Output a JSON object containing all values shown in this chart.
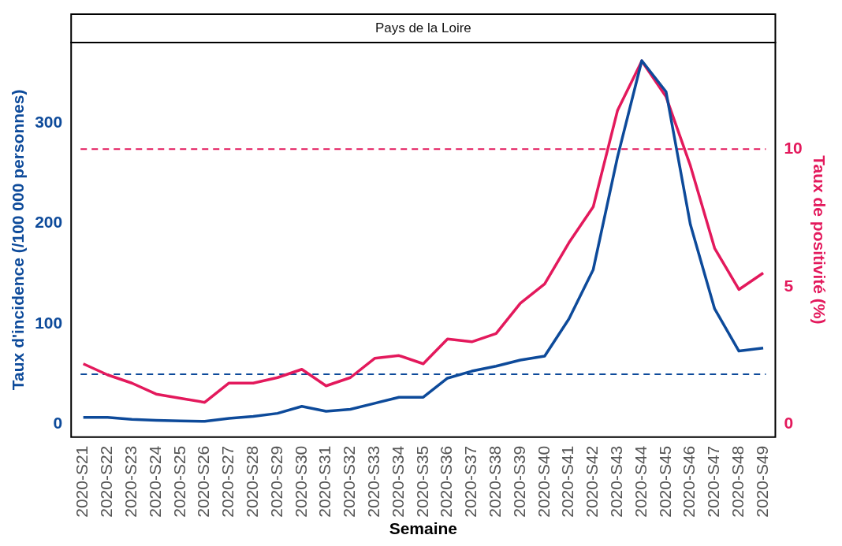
{
  "chart_data": {
    "type": "line",
    "title": "Pays de la Loire",
    "xlabel": "Semaine",
    "ylabel": "Taux d'incidence (/100 000 personnes)",
    "y2label": "Taux de positivité (%)",
    "categories": [
      "2020-S21",
      "2020-S22",
      "2020-S23",
      "2020-S24",
      "2020-S25",
      "2020-S26",
      "2020-S27",
      "2020-S28",
      "2020-S29",
      "2020-S30",
      "2020-S31",
      "2020-S32",
      "2020-S33",
      "2020-S34",
      "2020-S35",
      "2020-S36",
      "2020-S37",
      "2020-S38",
      "2020-S39",
      "2020-S40",
      "2020-S41",
      "2020-S42",
      "2020-S43",
      "2020-S44",
      "2020-S45",
      "2020-S46",
      "2020-S47",
      "2020-S48",
      "2020-S49"
    ],
    "series": [
      {
        "color": "#0d4a9a",
        "values": [
          7,
          7,
          5,
          4,
          3.5,
          3,
          6,
          8,
          11,
          18,
          13,
          15,
          21,
          27,
          27,
          46,
          53,
          58,
          64,
          68,
          105,
          154,
          266,
          362,
          331,
          199,
          115,
          73,
          76
        ]
      },
      {
        "color": "#e3195c",
        "axis": "y2",
        "values": [
          2.2,
          1.8,
          1.5,
          1.1,
          0.95,
          0.8,
          1.5,
          1.5,
          1.7,
          2.0,
          1.4,
          1.7,
          2.4,
          2.5,
          2.2,
          3.1,
          3.0,
          3.3,
          4.4,
          5.1,
          6.6,
          7.9,
          11.4,
          13.2,
          11.9,
          9.4,
          6.4,
          4.9,
          5.5
        ]
      }
    ],
    "ylim": [
      -12.6,
      380
    ],
    "yticks": [
      0,
      100,
      200,
      300
    ],
    "y2lim": [
      -0.46,
      13.87
    ],
    "y2ticks": [
      0,
      5,
      10
    ],
    "ref_lines": [
      {
        "axis": "y",
        "value": 50,
        "color": "#0d4a9a",
        "line_style": "dashed"
      },
      {
        "axis": "y2",
        "value": 10,
        "color": "#e3195c",
        "line_style": "dashed"
      }
    ],
    "grid": false,
    "legend": false,
    "marker": "none",
    "line_style": "solid"
  }
}
